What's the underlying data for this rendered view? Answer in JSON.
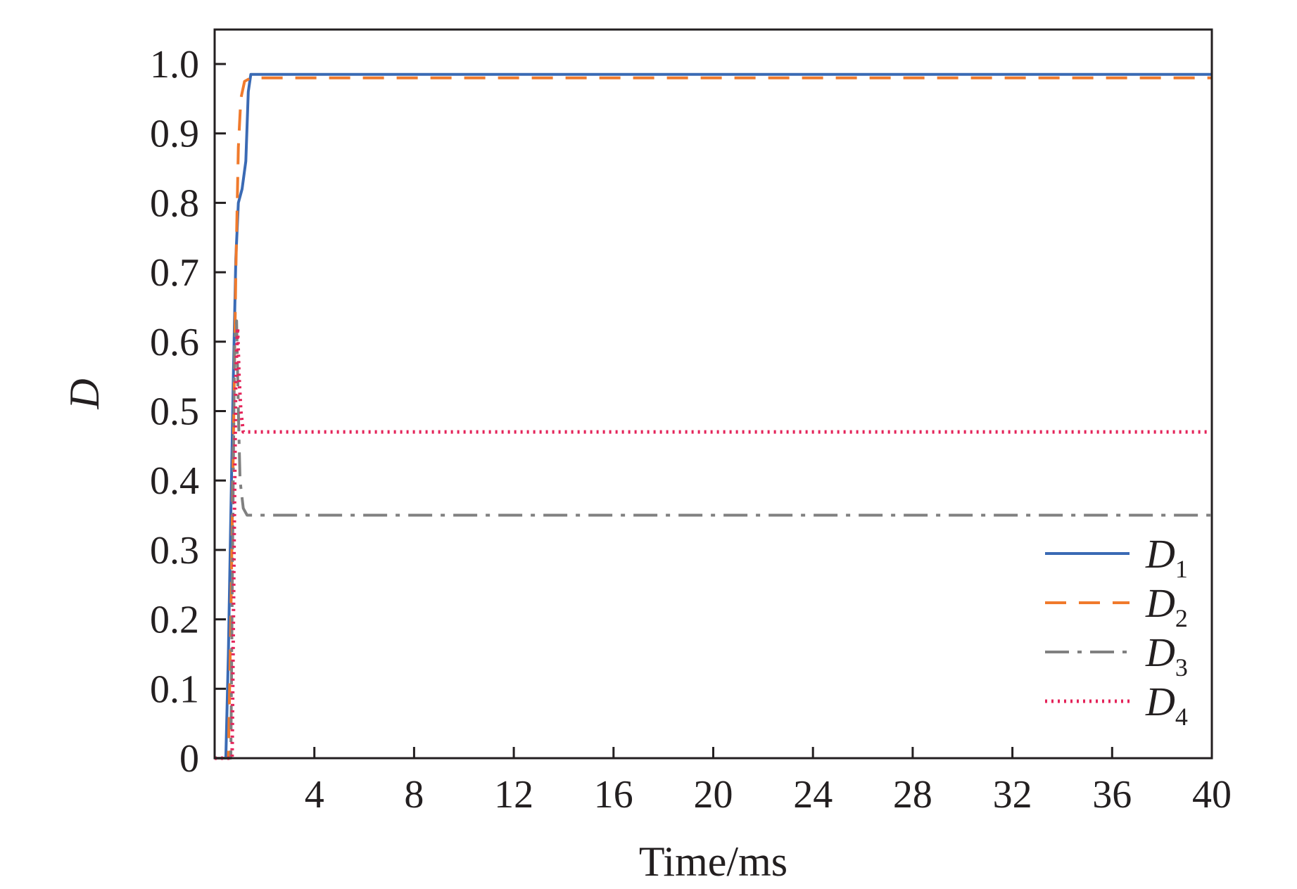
{
  "chart_data": {
    "type": "line",
    "title": "",
    "xlabel": "Time/ms",
    "ylabel": "D",
    "xlim": [
      0,
      40
    ],
    "ylim": [
      0,
      1.05
    ],
    "x_ticks": [
      4,
      8,
      12,
      16,
      20,
      24,
      28,
      32,
      36,
      40
    ],
    "y_ticks": [
      0,
      0.1,
      0.2,
      0.3,
      0.4,
      0.5,
      0.6,
      0.7,
      0.8,
      0.9,
      1.0
    ],
    "x_tick_labels": [
      "4",
      "8",
      "12",
      "16",
      "20",
      "24",
      "28",
      "32",
      "36",
      "40"
    ],
    "y_tick_labels": [
      "0",
      "0.1",
      "0.2",
      "0.3",
      "0.4",
      "0.5",
      "0.6",
      "0.7",
      "0.8",
      "0.9",
      "1.0"
    ],
    "grid": false,
    "legend_position": "bottom-right",
    "series": [
      {
        "name": "D",
        "subscript": "1",
        "color": "#3a6ab4",
        "dash": "solid",
        "points": [
          [
            0,
            0
          ],
          [
            0.45,
            0
          ],
          [
            0.55,
            0.15
          ],
          [
            0.65,
            0.35
          ],
          [
            0.75,
            0.55
          ],
          [
            0.85,
            0.72
          ],
          [
            0.95,
            0.8
          ],
          [
            1.1,
            0.82
          ],
          [
            1.25,
            0.86
          ],
          [
            1.35,
            0.96
          ],
          [
            1.45,
            0.985
          ],
          [
            40,
            0.985
          ]
        ]
      },
      {
        "name": "D",
        "subscript": "2",
        "color": "#f07a2c",
        "dash": "dashed",
        "points": [
          [
            0,
            0
          ],
          [
            0.55,
            0
          ],
          [
            0.65,
            0.2
          ],
          [
            0.75,
            0.45
          ],
          [
            0.85,
            0.7
          ],
          [
            0.95,
            0.88
          ],
          [
            1.05,
            0.95
          ],
          [
            1.2,
            0.975
          ],
          [
            1.45,
            0.98
          ],
          [
            40,
            0.98
          ]
        ]
      },
      {
        "name": "D",
        "subscript": "3",
        "color": "#808080",
        "dash": "dashdot",
        "points": [
          [
            0,
            0
          ],
          [
            0.65,
            0
          ],
          [
            0.72,
            0.3
          ],
          [
            0.8,
            0.6
          ],
          [
            0.88,
            0.63
          ],
          [
            0.95,
            0.5
          ],
          [
            1.02,
            0.4
          ],
          [
            1.15,
            0.36
          ],
          [
            1.3,
            0.35
          ],
          [
            40,
            0.35
          ]
        ]
      },
      {
        "name": "D",
        "subscript": "4",
        "color": "#e4245a",
        "dash": "dotted",
        "points": [
          [
            0,
            0
          ],
          [
            0.7,
            0
          ],
          [
            0.78,
            0.3
          ],
          [
            0.85,
            0.55
          ],
          [
            0.92,
            0.62
          ],
          [
            0.98,
            0.55
          ],
          [
            1.05,
            0.5
          ],
          [
            1.15,
            0.47
          ],
          [
            1.3,
            0.47
          ],
          [
            40,
            0.47
          ]
        ]
      }
    ]
  }
}
